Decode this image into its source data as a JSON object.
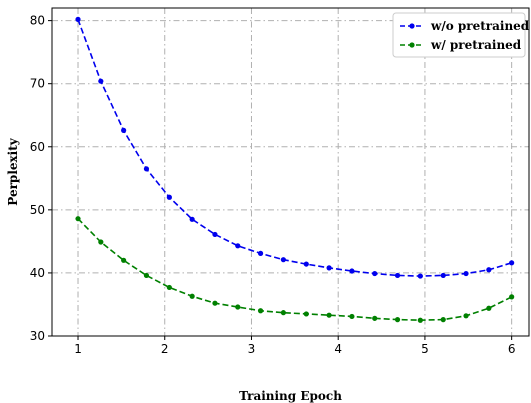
{
  "chart_data": {
    "type": "line",
    "xlabel": "Training Epoch",
    "ylabel": "Perplexity",
    "xlim": [
      0.7,
      6.2
    ],
    "ylim": [
      30,
      82
    ],
    "xticks": [
      1,
      2,
      3,
      4,
      5,
      6
    ],
    "yticks": [
      30,
      40,
      50,
      60,
      70,
      80
    ],
    "grid": true,
    "legend_position": "top-right",
    "series": [
      {
        "name": "w/o pretrained",
        "color": "#0000ee",
        "marker": "circle",
        "line_style": "dashed",
        "x": [
          1.0,
          1.263,
          1.526,
          1.789,
          2.053,
          2.316,
          2.579,
          2.842,
          3.105,
          3.368,
          3.632,
          3.895,
          4.158,
          4.421,
          4.684,
          4.947,
          5.211,
          5.474,
          5.737,
          6.0
        ],
        "y": [
          80.2,
          70.4,
          62.6,
          56.5,
          52.0,
          48.5,
          46.1,
          44.3,
          43.1,
          42.1,
          41.4,
          40.8,
          40.3,
          39.9,
          39.6,
          39.5,
          39.6,
          39.9,
          40.5,
          41.6
        ]
      },
      {
        "name": "w/ pretrained",
        "color": "#008000",
        "marker": "circle",
        "line_style": "dashed",
        "x": [
          1.0,
          1.263,
          1.526,
          1.789,
          2.053,
          2.316,
          2.579,
          2.842,
          3.105,
          3.368,
          3.632,
          3.895,
          4.158,
          4.421,
          4.684,
          4.947,
          5.211,
          5.474,
          5.737,
          6.0
        ],
        "y": [
          48.6,
          44.9,
          42.0,
          39.6,
          37.7,
          36.3,
          35.2,
          34.6,
          34.0,
          33.7,
          33.5,
          33.3,
          33.1,
          32.8,
          32.6,
          32.5,
          32.6,
          33.2,
          34.4,
          36.2
        ]
      }
    ]
  }
}
